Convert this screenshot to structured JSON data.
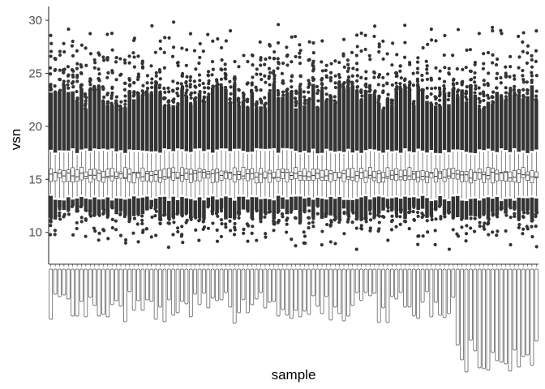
{
  "chart_data": {
    "type": "box",
    "xlabel": "sample",
    "ylabel": "vsn",
    "y_ticks": [
      10,
      15,
      20,
      25,
      30
    ],
    "ylim": [
      7,
      31.3
    ],
    "grid": false,
    "legend": "none",
    "n_samples": 112,
    "summary": {
      "median": 15.4,
      "q1": 14.9,
      "q3": 15.9,
      "whisker_low": 13.4,
      "whisker_high": 17.5,
      "outlier_low_range": [
        8,
        13.3
      ],
      "outlier_high_range": [
        17.6,
        30.2
      ]
    },
    "colors": {
      "box_outline": "#333333",
      "box_fill": "#ffffff",
      "outlier": "#333333",
      "axis": "#333333"
    }
  }
}
